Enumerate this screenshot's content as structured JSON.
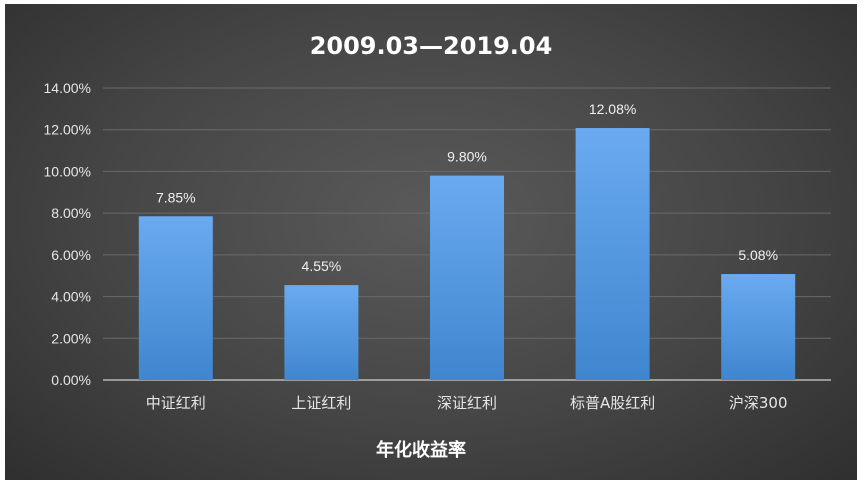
{
  "chart_data": {
    "type": "bar",
    "title": "2009.03—2019.04",
    "xlabel": "年化收益率",
    "ylabel": "",
    "categories": [
      "中证红利",
      "上证红利",
      "深证红利",
      "标普A股红利",
      "沪深300"
    ],
    "values": [
      7.85,
      4.55,
      9.8,
      12.08,
      5.08
    ],
    "data_labels": [
      "7.85%",
      "4.55%",
      "9.80%",
      "12.08%",
      "5.08%"
    ],
    "ylim": [
      0,
      14
    ],
    "yticks": [
      "0.00%",
      "2.00%",
      "4.00%",
      "6.00%",
      "8.00%",
      "10.00%",
      "12.00%",
      "14.00%"
    ],
    "grid": true,
    "colors": {
      "bar_top": "#6aaaf0",
      "bar_bottom": "#3f86cf",
      "grid": "#6a6a6a",
      "axis": "#d0d0d0"
    }
  }
}
